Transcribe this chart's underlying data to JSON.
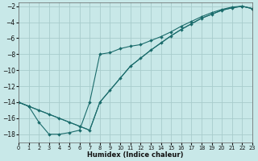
{
  "xlabel": "Humidex (Indice chaleur)",
  "bg_color": "#c8e8e8",
  "grid_color": "#a8cccc",
  "line_color": "#1a6b6b",
  "xlim": [
    0,
    23
  ],
  "ylim": [
    -19,
    -1.5
  ],
  "xticks": [
    0,
    1,
    2,
    3,
    4,
    5,
    6,
    7,
    8,
    9,
    10,
    11,
    12,
    13,
    14,
    15,
    16,
    17,
    18,
    19,
    20,
    21,
    22,
    23
  ],
  "yticks": [
    -2,
    -4,
    -6,
    -8,
    -10,
    -12,
    -14,
    -16,
    -18
  ],
  "line1_x": [
    0,
    1,
    2,
    3,
    4,
    5,
    6,
    7,
    8,
    9,
    10,
    11,
    12,
    13,
    14,
    15,
    16,
    17,
    18,
    19,
    20,
    21,
    22,
    23
  ],
  "line1_y": [
    -14.0,
    -14.5,
    -15.0,
    -15.5,
    -16.0,
    -16.5,
    -17.0,
    -17.5,
    -14.0,
    -12.5,
    -11.0,
    -9.5,
    -8.5,
    -7.5,
    -6.6,
    -5.7,
    -4.9,
    -4.2,
    -3.5,
    -3.0,
    -2.5,
    -2.2,
    -2.0,
    -2.3
  ],
  "line2_x": [
    0,
    1,
    2,
    3,
    4,
    5,
    6,
    7,
    8,
    9,
    10,
    11,
    12,
    13,
    14,
    15,
    16,
    17,
    18,
    19,
    20,
    21,
    22,
    23
  ],
  "line2_y": [
    -14.0,
    -14.5,
    -16.5,
    -18.0,
    -18.0,
    -17.8,
    -17.5,
    -14.0,
    -8.0,
    -7.8,
    -7.3,
    -7.0,
    -6.8,
    -6.3,
    -5.8,
    -5.2,
    -4.5,
    -3.9,
    -3.3,
    -2.8,
    -2.4,
    -2.1,
    -2.0,
    -2.3
  ],
  "line3_x": [
    0,
    1,
    2,
    3,
    4,
    5,
    6,
    7,
    8,
    9,
    10,
    11,
    12,
    13,
    14,
    15,
    16,
    17,
    18,
    19,
    20,
    21,
    22,
    23
  ],
  "line3_y": [
    -14.0,
    -14.5,
    -15.0,
    -15.5,
    -16.0,
    -16.5,
    -17.0,
    -17.5,
    -14.0,
    -12.5,
    -11.0,
    -9.5,
    -8.5,
    -7.5,
    -6.6,
    -5.7,
    -4.9,
    -4.2,
    -3.5,
    -3.0,
    -2.5,
    -2.2,
    -2.0,
    -2.3
  ]
}
